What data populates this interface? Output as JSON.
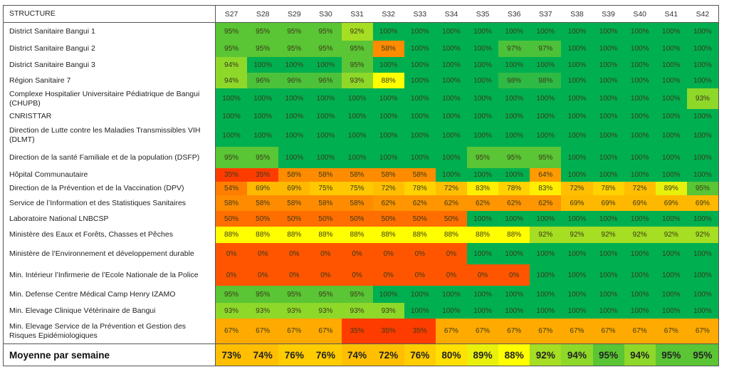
{
  "table": {
    "header_label": "STRUCTURE",
    "weeks": [
      "S27",
      "S28",
      "S29",
      "S30",
      "S31",
      "S32",
      "S33",
      "S34",
      "S35",
      "S36",
      "S37",
      "S38",
      "S39",
      "S40",
      "S41",
      "S42"
    ],
    "rows": [
      {
        "name": "District Sanitaire Bangui 1",
        "values": [
          95,
          95,
          95,
          95,
          92,
          100,
          100,
          100,
          100,
          100,
          100,
          100,
          100,
          100,
          100,
          100
        ]
      },
      {
        "name": "District Sanitaire Bangui 2",
        "values": [
          95,
          95,
          95,
          95,
          95,
          58,
          100,
          100,
          100,
          97,
          97,
          100,
          100,
          100,
          100,
          100
        ]
      },
      {
        "name": "District Sanitaire Bangui 3",
        "values": [
          94,
          100,
          100,
          100,
          95,
          100,
          100,
          100,
          100,
          100,
          100,
          100,
          100,
          100,
          100,
          100
        ]
      },
      {
        "name": "Région Sanitaire 7",
        "values": [
          94,
          96,
          96,
          96,
          93,
          88,
          100,
          100,
          100,
          98,
          98,
          100,
          100,
          100,
          100,
          100
        ]
      },
      {
        "name": "Complexe Hospitalier Universitaire Pédiatrique de Bangui (CHUPB)",
        "values": [
          100,
          100,
          100,
          100,
          100,
          100,
          100,
          100,
          100,
          100,
          100,
          100,
          100,
          100,
          100,
          93
        ]
      },
      {
        "name": "CNRISTTAR",
        "values": [
          100,
          100,
          100,
          100,
          100,
          100,
          100,
          100,
          100,
          100,
          100,
          100,
          100,
          100,
          100,
          100
        ]
      },
      {
        "name": "Direction de Lutte contre les Maladies Transmissibles VIH (DLMT)",
        "values": [
          100,
          100,
          100,
          100,
          100,
          100,
          100,
          100,
          100,
          100,
          100,
          100,
          100,
          100,
          100,
          100
        ]
      },
      {
        "name": "Direction de la santé Familiale et de la population (DSFP)",
        "values": [
          95,
          95,
          100,
          100,
          100,
          100,
          100,
          100,
          95,
          95,
          95,
          100,
          100,
          100,
          100,
          100
        ]
      },
      {
        "name": "Hôpital Communautaire",
        "values": [
          35,
          35,
          58,
          58,
          58,
          58,
          58,
          100,
          100,
          100,
          64,
          100,
          100,
          100,
          100,
          100
        ]
      },
      {
        "name": "Direction de la Prévention et de la Vaccination (DPV)",
        "values": [
          54,
          69,
          69,
          75,
          75,
          72,
          78,
          72,
          83,
          78,
          83,
          72,
          78,
          72,
          89,
          95
        ]
      },
      {
        "name": "Service de l’Information et des Statistiques Sanitaires",
        "values": [
          58,
          58,
          58,
          58,
          58,
          62,
          62,
          62,
          62,
          62,
          62,
          69,
          69,
          69,
          69,
          69
        ]
      },
      {
        "name": "Laboratoire National LNBCSP",
        "values": [
          50,
          50,
          50,
          50,
          50,
          50,
          50,
          50,
          100,
          100,
          100,
          100,
          100,
          100,
          100,
          100
        ]
      },
      {
        "name": "Ministère des Eaux et Forêts, Chasses et Pêches",
        "values": [
          88,
          88,
          88,
          88,
          88,
          88,
          88,
          88,
          88,
          88,
          92,
          92,
          92,
          92,
          92,
          92
        ]
      },
      {
        "name": "Ministère de l’Environnement et développement durable",
        "values": [
          0,
          0,
          0,
          0,
          0,
          0,
          0,
          0,
          100,
          100,
          100,
          100,
          100,
          100,
          100,
          100
        ]
      },
      {
        "name": "Min. Intérieur l’Infirmerie de l’Ecole Nationale de la Police",
        "values": [
          0,
          0,
          0,
          0,
          0,
          0,
          0,
          0,
          0,
          0,
          100,
          100,
          100,
          100,
          100,
          100
        ]
      },
      {
        "name": "Min. Defense Centre Médical Camp Henry IZAMO",
        "values": [
          95,
          95,
          95,
          95,
          95,
          100,
          100,
          100,
          100,
          100,
          100,
          100,
          100,
          100,
          100,
          100
        ]
      },
      {
        "name": "Min. Elevage Clinique Vétérinaire de Bangui",
        "values": [
          93,
          93,
          93,
          93,
          93,
          93,
          100,
          100,
          100,
          100,
          100,
          100,
          100,
          100,
          100,
          100
        ]
      },
      {
        "name": "Min. Elevage Service de la Prévention et Gestion des Risques Epidémiologiques",
        "values": [
          67,
          67,
          67,
          67,
          35,
          35,
          35,
          67,
          67,
          67,
          67,
          67,
          67,
          67,
          67,
          67
        ]
      }
    ],
    "total": {
      "name": "Moyenne par semaine",
      "values": [
        73,
        74,
        76,
        76,
        74,
        72,
        76,
        80,
        89,
        88,
        92,
        94,
        95,
        94,
        95,
        95
      ]
    },
    "value_suffix": "%"
  },
  "colors": {
    "g100": "#00b050",
    "g98": "#2fba45",
    "g96": "#4cc23a",
    "g95": "#5ac535",
    "g93": "#8ed82a",
    "g92": "#a5de22",
    "y89": "#e8f00c",
    "y88": "#ffff00",
    "y83": "#ffee00",
    "y80": "#ffe000",
    "o78": "#ffd200",
    "o76": "#ffcc00",
    "o75": "#ffc800",
    "o72": "#ffbf00",
    "o69": "#ffb800",
    "o67": "#ffaa00",
    "o64": "#ff9a00",
    "o62": "#ff9500",
    "o58": "#ff8c00",
    "o54": "#ff7e00",
    "o50": "#ff6e00",
    "r35": "#ff3c00",
    "r0": "#ff5500",
    "border": "#555555"
  }
}
